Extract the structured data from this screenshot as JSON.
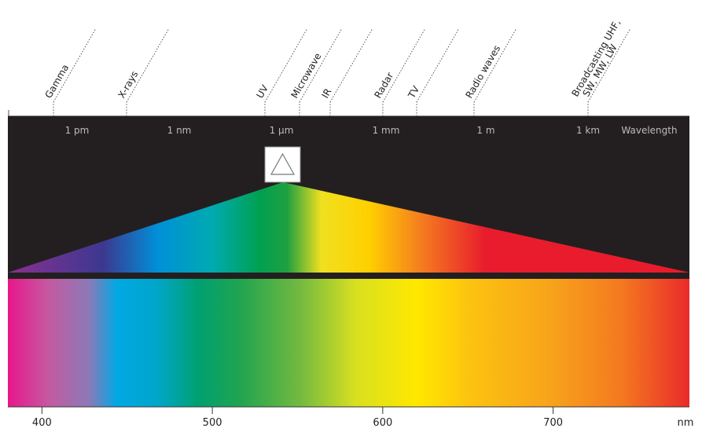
{
  "regions": [
    "Gamma",
    "X-rays",
    "UV",
    "Microwave",
    "IR",
    "Radar",
    "TV",
    "Radio waves",
    [
      "Broadcasting UHF,",
      "SW, MW, LW"
    ]
  ],
  "scale": [
    "1 pm",
    "1 nm",
    "1 µm",
    "1 mm",
    "1 m",
    "1 km",
    "Wavelength"
  ],
  "visible_axis": {
    "range": [
      380,
      780
    ],
    "ticks": [
      400,
      500,
      600,
      700
    ],
    "unit": "nm"
  }
}
